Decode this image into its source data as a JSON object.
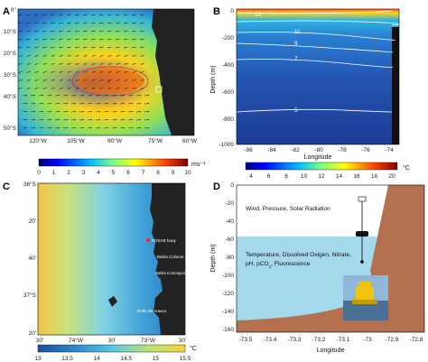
{
  "panels": {
    "A": {
      "letter": "A",
      "lat_ticks": [
        "0°",
        "10°S",
        "20°S",
        "30°S",
        "40°S",
        "50°S"
      ],
      "lon_ticks": [
        "120°W",
        "105°W",
        "90°W",
        "75°W",
        "60°W"
      ],
      "colorbar": {
        "ticks": [
          "0",
          "1",
          "2",
          "3",
          "4",
          "5",
          "6",
          "7",
          "8",
          "9",
          "10"
        ],
        "unit": "ms⁻¹"
      }
    },
    "B": {
      "letter": "B",
      "ylabel": "Depth (m)",
      "xlabel": "Longitude",
      "y_ticks": [
        "0",
        "-200",
        "-400",
        "-600",
        "-800",
        "-1000"
      ],
      "x_ticks": [
        "-86",
        "-84",
        "-82",
        "-80",
        "-78",
        "-76",
        "-74"
      ],
      "contour_labels": [
        "12",
        "11",
        "9",
        "7",
        "5"
      ],
      "colorbar": {
        "ticks": [
          "4",
          "6",
          "8",
          "10",
          "12",
          "14",
          "16",
          "18",
          "20"
        ],
        "unit": "°C"
      }
    },
    "C": {
      "letter": "C",
      "lat_ticks": [
        "36°S",
        "20'",
        "40'",
        "37°S",
        "20'"
      ],
      "lon_ticks": [
        "30'",
        "74°W",
        "30'",
        "73°W",
        "30'"
      ],
      "labels": {
        "buoy": "POSAR buoy",
        "b1": "Bahía Coliumo",
        "b2": "Bahía Concepción",
        "b3": "Golfo de Arauco"
      },
      "colorbar": {
        "ticks": [
          "13",
          "13.5",
          "14",
          "14.5",
          "15",
          "15.5"
        ],
        "unit": "°C"
      }
    },
    "D": {
      "letter": "D",
      "ylabel": "Depth (m)",
      "xlabel": "Longitude",
      "y_ticks": [
        "0",
        "-20",
        "-40",
        "-60",
        "-80",
        "-100",
        "-120",
        "-140",
        "-160"
      ],
      "x_ticks": [
        "-73.5",
        "-73.4",
        "-73.3",
        "-73.2",
        "-73.1",
        "-73",
        "-72.9",
        "-72.8"
      ],
      "surface_text": "Wind, Pressure, Solar Radiation",
      "sub_line1": "Temperature, Dissolved Oxigen, Nitrate,",
      "sub_line2": "pH, pCO",
      "sub_subscript": "2",
      "sub_line2_end": ", Fluorescence"
    }
  },
  "colors": {
    "ocean_light": "#a3d9eb",
    "seabed": "#b5714f",
    "land": "#222222"
  }
}
